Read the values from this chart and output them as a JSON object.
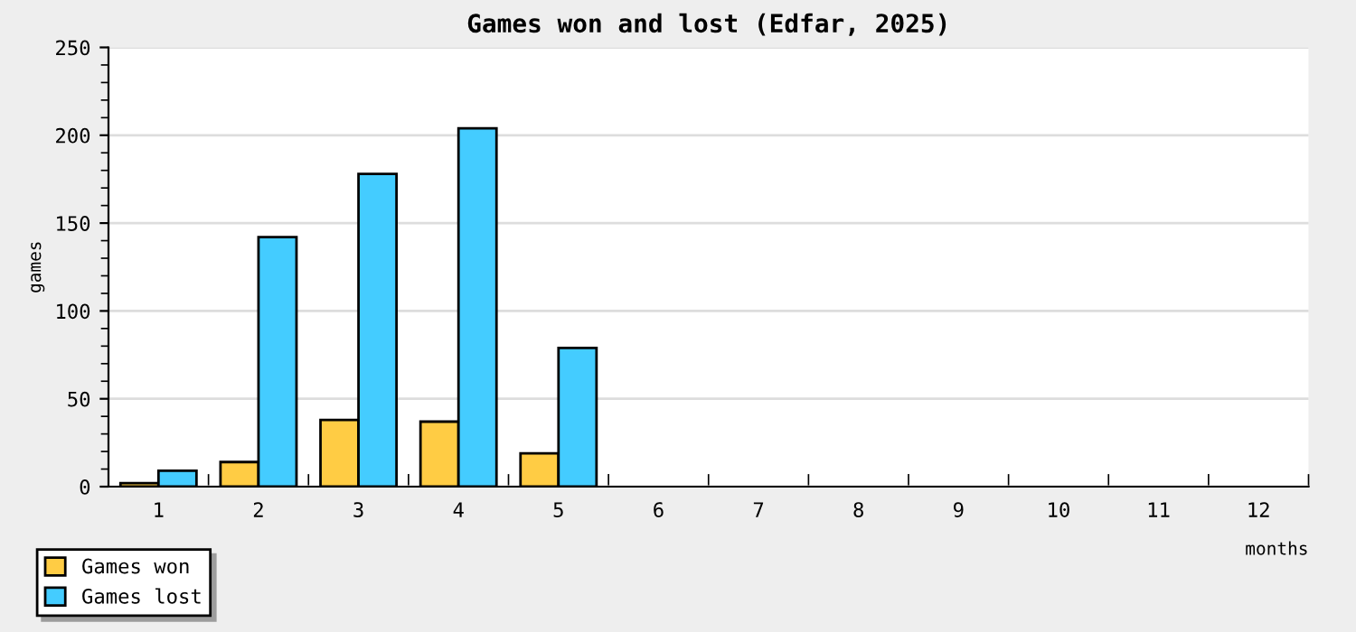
{
  "chart_data": {
    "type": "bar",
    "title": "Games won and lost (Edfar, 2025)",
    "xlabel": "months",
    "ylabel": "games",
    "categories": [
      "1",
      "2",
      "3",
      "4",
      "5",
      "6",
      "7",
      "8",
      "9",
      "10",
      "11",
      "12"
    ],
    "series": [
      {
        "name": "Games won",
        "color": "#ffcc44",
        "values": [
          2,
          14,
          38,
          37,
          19,
          0,
          0,
          0,
          0,
          0,
          0,
          0
        ]
      },
      {
        "name": "Games lost",
        "color": "#44ccff",
        "values": [
          9,
          142,
          178,
          204,
          79,
          0,
          0,
          0,
          0,
          0,
          0,
          0
        ]
      }
    ],
    "ylim": [
      0,
      250
    ],
    "yticks": [
      0,
      50,
      100,
      150,
      200,
      250
    ],
    "grid": "y",
    "legend": "bottom left"
  }
}
